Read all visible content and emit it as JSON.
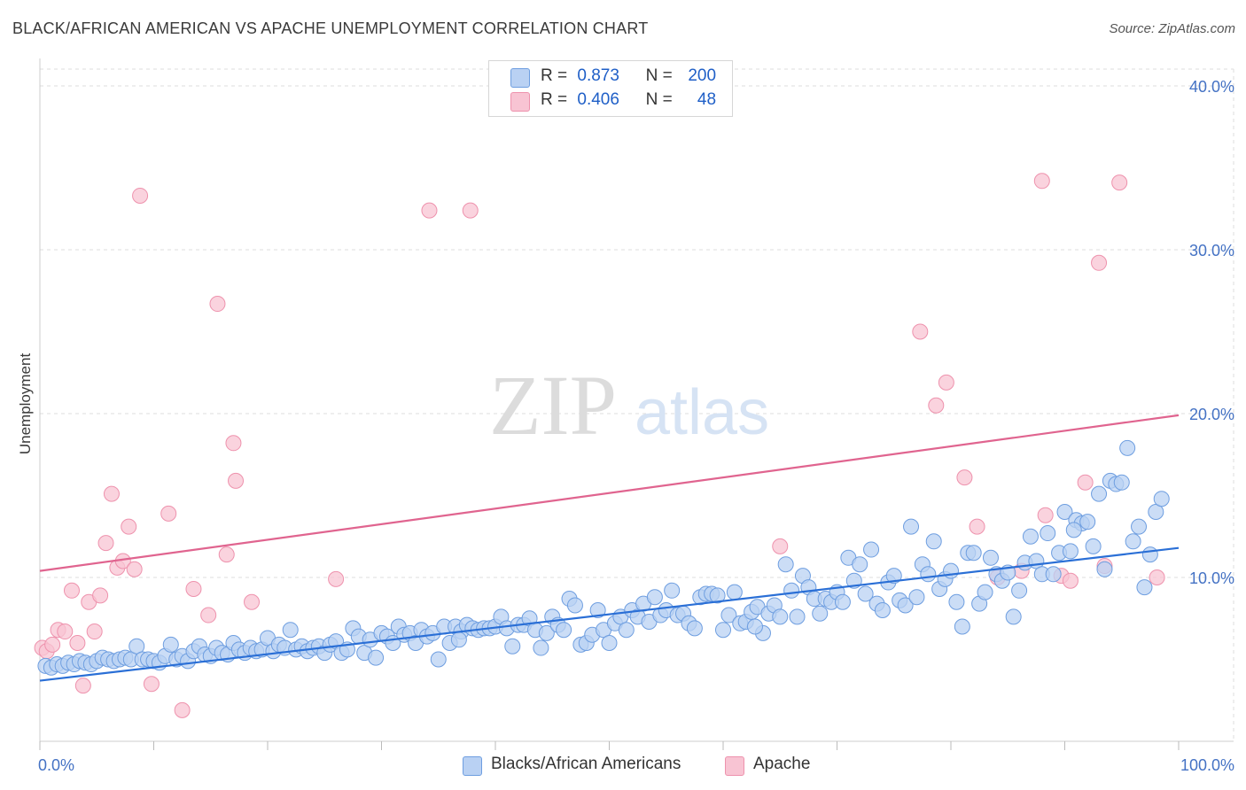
{
  "header": {
    "title": "BLACK/AFRICAN AMERICAN VS APACHE UNEMPLOYMENT CORRELATION CHART",
    "source": "Source: ZipAtlas.com"
  },
  "watermark": {
    "zip": "ZIP",
    "atlas": "atlas"
  },
  "legend": {
    "rows": [
      {
        "r_label": "R =",
        "r_value": "0.873",
        "n_label": "N =",
        "n_value": "200"
      },
      {
        "r_label": "R =",
        "r_value": "0.406",
        "n_label": "N =",
        "n_value": "48"
      }
    ]
  },
  "bottom_legend": {
    "blacks": "Blacks/African Americans",
    "apache": "Apache"
  },
  "colors": {
    "blue_fill": "#b9d1f3",
    "blue_stroke": "#6e9ee0",
    "blue_line": "#2a6fd6",
    "pink_fill": "#f8c4d3",
    "pink_stroke": "#ee92ad",
    "pink_line": "#e0648f",
    "grid": "#dddddd",
    "tick_text": "#4472c4"
  },
  "chart_data": {
    "type": "scatter",
    "title": "BLACK/AFRICAN AMERICAN VS APACHE UNEMPLOYMENT CORRELATION CHART",
    "xlabel": "",
    "ylabel": "Unemployment",
    "xlim": [
      0,
      100
    ],
    "ylim": [
      0,
      40
    ],
    "x_tick_labels": [
      "0.0%",
      "100.0%"
    ],
    "y_ticks": [
      10,
      20,
      30,
      40
    ],
    "y_tick_labels": [
      "10.0%",
      "20.0%",
      "30.0%",
      "40.0%"
    ],
    "grid": true,
    "series": [
      {
        "name": "Blacks/African Americans",
        "r": 0.873,
        "n": 200,
        "trend": {
          "x": [
            0,
            100
          ],
          "y": [
            3.7,
            11.8
          ]
        },
        "points": [
          [
            0.5,
            4.6
          ],
          [
            1,
            4.5
          ],
          [
            1.5,
            4.7
          ],
          [
            2,
            4.6
          ],
          [
            2.5,
            4.8
          ],
          [
            3,
            4.7
          ],
          [
            3.5,
            4.9
          ],
          [
            4,
            4.8
          ],
          [
            4.5,
            4.7
          ],
          [
            5,
            4.9
          ],
          [
            5.5,
            5.1
          ],
          [
            6,
            5.0
          ],
          [
            6.5,
            4.9
          ],
          [
            7,
            5.0
          ],
          [
            7.5,
            5.1
          ],
          [
            8,
            5.0
          ],
          [
            8.5,
            5.8
          ],
          [
            9,
            5.0
          ],
          [
            9.5,
            5.0
          ],
          [
            10,
            4.9
          ],
          [
            10.5,
            4.8
          ],
          [
            11,
            5.2
          ],
          [
            11.5,
            5.9
          ],
          [
            12,
            5.0
          ],
          [
            12.5,
            5.2
          ],
          [
            13,
            4.9
          ],
          [
            13.5,
            5.5
          ],
          [
            14,
            5.8
          ],
          [
            14.5,
            5.3
          ],
          [
            15,
            5.2
          ],
          [
            15.5,
            5.7
          ],
          [
            16,
            5.4
          ],
          [
            16.5,
            5.3
          ],
          [
            17,
            6.0
          ],
          [
            17.5,
            5.6
          ],
          [
            18,
            5.4
          ],
          [
            18.5,
            5.7
          ],
          [
            19,
            5.5
          ],
          [
            19.5,
            5.6
          ],
          [
            20,
            6.3
          ],
          [
            20.5,
            5.5
          ],
          [
            21,
            5.9
          ],
          [
            21.5,
            5.7
          ],
          [
            22,
            6.8
          ],
          [
            22.5,
            5.6
          ],
          [
            23,
            5.8
          ],
          [
            23.5,
            5.5
          ],
          [
            24,
            5.7
          ],
          [
            24.5,
            5.8
          ],
          [
            25,
            5.4
          ],
          [
            25.5,
            5.9
          ],
          [
            26,
            6.1
          ],
          [
            26.5,
            5.4
          ],
          [
            27,
            5.6
          ],
          [
            27.5,
            6.9
          ],
          [
            28,
            6.4
          ],
          [
            28.5,
            5.4
          ],
          [
            29,
            6.2
          ],
          [
            29.5,
            5.1
          ],
          [
            30,
            6.6
          ],
          [
            30.5,
            6.4
          ],
          [
            31,
            6.0
          ],
          [
            31.5,
            7.0
          ],
          [
            32,
            6.5
          ],
          [
            32.5,
            6.6
          ],
          [
            33,
            6.0
          ],
          [
            33.5,
            6.8
          ],
          [
            34,
            6.4
          ],
          [
            34.5,
            6.6
          ],
          [
            35,
            5.0
          ],
          [
            35.5,
            7.0
          ],
          [
            36,
            6.0
          ],
          [
            36.5,
            7.0
          ],
          [
            37,
            6.7
          ],
          [
            37.5,
            7.1
          ],
          [
            38,
            6.9
          ],
          [
            38.5,
            6.8
          ],
          [
            39,
            6.9
          ],
          [
            39.5,
            6.9
          ],
          [
            40,
            7.0
          ],
          [
            40.5,
            7.6
          ],
          [
            41,
            6.9
          ],
          [
            41.5,
            5.8
          ],
          [
            42,
            7.1
          ],
          [
            42.5,
            7.1
          ],
          [
            43,
            7.5
          ],
          [
            43.5,
            6.8
          ],
          [
            44,
            5.7
          ],
          [
            44.5,
            6.6
          ],
          [
            45,
            7.6
          ],
          [
            45.5,
            7.1
          ],
          [
            46,
            6.8
          ],
          [
            46.5,
            8.7
          ],
          [
            47,
            8.3
          ],
          [
            47.5,
            5.9
          ],
          [
            48,
            6.0
          ],
          [
            48.5,
            6.5
          ],
          [
            49,
            8.0
          ],
          [
            49.5,
            6.8
          ],
          [
            50,
            6.0
          ],
          [
            50.5,
            7.2
          ],
          [
            51,
            7.6
          ],
          [
            51.5,
            6.8
          ],
          [
            52,
            8.0
          ],
          [
            52.5,
            7.6
          ],
          [
            53,
            8.4
          ],
          [
            53.5,
            7.3
          ],
          [
            54,
            8.8
          ],
          [
            54.5,
            7.7
          ],
          [
            55,
            8.0
          ],
          [
            55.5,
            9.2
          ],
          [
            56,
            7.7
          ],
          [
            56.5,
            7.8
          ],
          [
            57,
            7.2
          ],
          [
            57.5,
            6.9
          ],
          [
            58,
            8.8
          ],
          [
            58.5,
            9.0
          ],
          [
            59,
            9.0
          ],
          [
            59.5,
            8.9
          ],
          [
            60,
            6.8
          ],
          [
            60.5,
            7.7
          ],
          [
            61,
            9.1
          ],
          [
            61.5,
            7.2
          ],
          [
            62,
            7.3
          ],
          [
            62.5,
            7.9
          ],
          [
            63,
            8.2
          ],
          [
            63.5,
            6.6
          ],
          [
            64,
            7.8
          ],
          [
            64.5,
            8.3
          ],
          [
            65,
            7.6
          ],
          [
            65.5,
            10.8
          ],
          [
            66,
            9.2
          ],
          [
            66.5,
            7.6
          ],
          [
            67,
            10.1
          ],
          [
            67.5,
            9.4
          ],
          [
            68,
            8.7
          ],
          [
            68.5,
            7.8
          ],
          [
            69,
            8.7
          ],
          [
            69.5,
            8.5
          ],
          [
            70,
            9.1
          ],
          [
            70.5,
            8.5
          ],
          [
            71,
            11.2
          ],
          [
            71.5,
            9.8
          ],
          [
            72,
            10.8
          ],
          [
            72.5,
            9.0
          ],
          [
            73,
            11.7
          ],
          [
            73.5,
            8.4
          ],
          [
            74,
            8.0
          ],
          [
            74.5,
            9.7
          ],
          [
            75,
            10.1
          ],
          [
            75.5,
            8.6
          ],
          [
            76,
            8.3
          ],
          [
            76.5,
            13.1
          ],
          [
            77,
            8.8
          ],
          [
            77.5,
            10.8
          ],
          [
            78,
            10.2
          ],
          [
            78.5,
            12.2
          ],
          [
            79,
            9.3
          ],
          [
            79.5,
            9.9
          ],
          [
            80,
            10.4
          ],
          [
            80.5,
            8.5
          ],
          [
            81,
            7.0
          ],
          [
            81.5,
            11.5
          ],
          [
            82,
            11.5
          ],
          [
            82.5,
            8.4
          ],
          [
            83,
            9.1
          ],
          [
            83.5,
            11.2
          ],
          [
            84,
            10.2
          ],
          [
            84.5,
            9.8
          ],
          [
            85,
            10.3
          ],
          [
            85.5,
            7.6
          ],
          [
            86,
            9.2
          ],
          [
            86.5,
            10.9
          ],
          [
            87,
            12.5
          ],
          [
            87.5,
            11.0
          ],
          [
            88,
            10.2
          ],
          [
            88.5,
            12.7
          ],
          [
            89,
            10.2
          ],
          [
            89.5,
            11.5
          ],
          [
            90,
            14.0
          ],
          [
            90.5,
            11.6
          ],
          [
            91,
            13.5
          ],
          [
            91.5,
            13.3
          ],
          [
            92,
            13.4
          ],
          [
            92.5,
            11.9
          ],
          [
            93,
            15.1
          ],
          [
            93.5,
            10.5
          ],
          [
            94,
            15.9
          ],
          [
            94.5,
            15.7
          ],
          [
            95,
            15.8
          ],
          [
            95.5,
            17.9
          ],
          [
            96,
            12.2
          ],
          [
            96.5,
            13.1
          ],
          [
            97,
            9.4
          ],
          [
            97.5,
            11.4
          ],
          [
            98,
            14.0
          ],
          [
            98.5,
            14.8
          ],
          [
            90.8,
            12.9
          ],
          [
            62.8,
            7.0
          ],
          [
            36.8,
            6.2
          ]
        ]
      },
      {
        "name": "Apache",
        "r": 0.406,
        "n": 48,
        "trend": {
          "x": [
            0,
            100
          ],
          "y": [
            10.4,
            19.9
          ]
        },
        "points": [
          [
            0.2,
            5.7
          ],
          [
            0.6,
            5.5
          ],
          [
            1.1,
            5.9
          ],
          [
            1.6,
            6.8
          ],
          [
            2.2,
            6.7
          ],
          [
            2.8,
            9.2
          ],
          [
            3.3,
            6.0
          ],
          [
            3.8,
            3.4
          ],
          [
            4.3,
            8.5
          ],
          [
            4.8,
            6.7
          ],
          [
            5.3,
            8.9
          ],
          [
            5.8,
            12.1
          ],
          [
            6.3,
            15.1
          ],
          [
            6.8,
            10.6
          ],
          [
            7.3,
            11.0
          ],
          [
            7.8,
            13.1
          ],
          [
            8.3,
            10.5
          ],
          [
            8.8,
            33.3
          ],
          [
            9.8,
            3.5
          ],
          [
            11.3,
            13.9
          ],
          [
            12.5,
            1.9
          ],
          [
            13.5,
            9.3
          ],
          [
            14.8,
            7.7
          ],
          [
            15.6,
            26.7
          ],
          [
            16.4,
            11.4
          ],
          [
            17.0,
            18.2
          ],
          [
            17.2,
            15.9
          ],
          [
            18.6,
            8.5
          ],
          [
            26.0,
            9.9
          ],
          [
            34.2,
            32.4
          ],
          [
            37.8,
            32.4
          ],
          [
            65.0,
            11.9
          ],
          [
            77.3,
            25.0
          ],
          [
            78.7,
            20.5
          ],
          [
            79.6,
            21.9
          ],
          [
            81.2,
            16.1
          ],
          [
            82.3,
            13.1
          ],
          [
            84.1,
            10.0
          ],
          [
            86.2,
            10.4
          ],
          [
            88.0,
            34.2
          ],
          [
            88.3,
            13.8
          ],
          [
            89.7,
            10.1
          ],
          [
            90.5,
            9.8
          ],
          [
            91.8,
            15.8
          ],
          [
            93.0,
            29.2
          ],
          [
            93.5,
            10.7
          ],
          [
            94.8,
            34.1
          ],
          [
            98.1,
            10.0
          ]
        ]
      }
    ]
  }
}
